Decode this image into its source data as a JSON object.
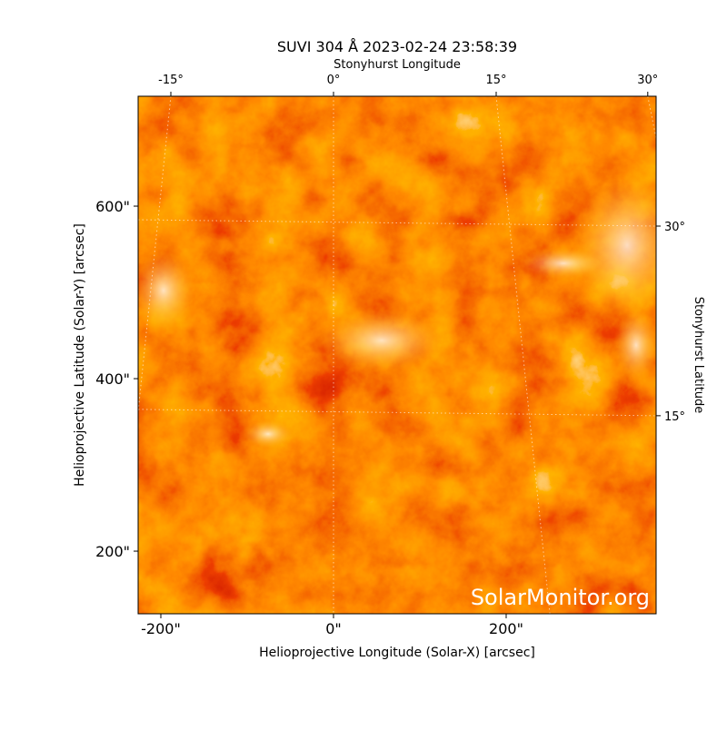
{
  "chart_data": {
    "type": "image",
    "title": "SUVI 304 Å 2023-02-24 23:58:39",
    "xlabel": "Helioprojective Longitude (Solar-X) [arcsec]",
    "ylabel": "Helioprojective Latitude (Solar-Y) [arcsec]",
    "x2label": "Stonyhurst Longitude",
    "y2label": "Stonyhurst Latitude",
    "watermark": "SolarMonitor.org",
    "xlim": [
      -226.3,
      373.7
    ],
    "ylim": [
      127.4,
      727.4
    ],
    "xticks": [
      {
        "value": -200,
        "label": "-200\""
      },
      {
        "value": 0,
        "label": "0\""
      },
      {
        "value": 200,
        "label": "200\""
      }
    ],
    "yticks": [
      {
        "value": 200,
        "label": "200\""
      },
      {
        "value": 400,
        "label": "400\""
      },
      {
        "value": 600,
        "label": "600\""
      }
    ],
    "x2ticks": [
      {
        "value": -15,
        "label": "-15°"
      },
      {
        "value": 0,
        "label": "0°"
      },
      {
        "value": 15,
        "label": "15°"
      },
      {
        "value": 30,
        "label": "30°"
      }
    ],
    "y2ticks": [
      {
        "value": 15,
        "label": "15°"
      },
      {
        "value": 30,
        "label": "30°"
      }
    ],
    "grid": true
  }
}
